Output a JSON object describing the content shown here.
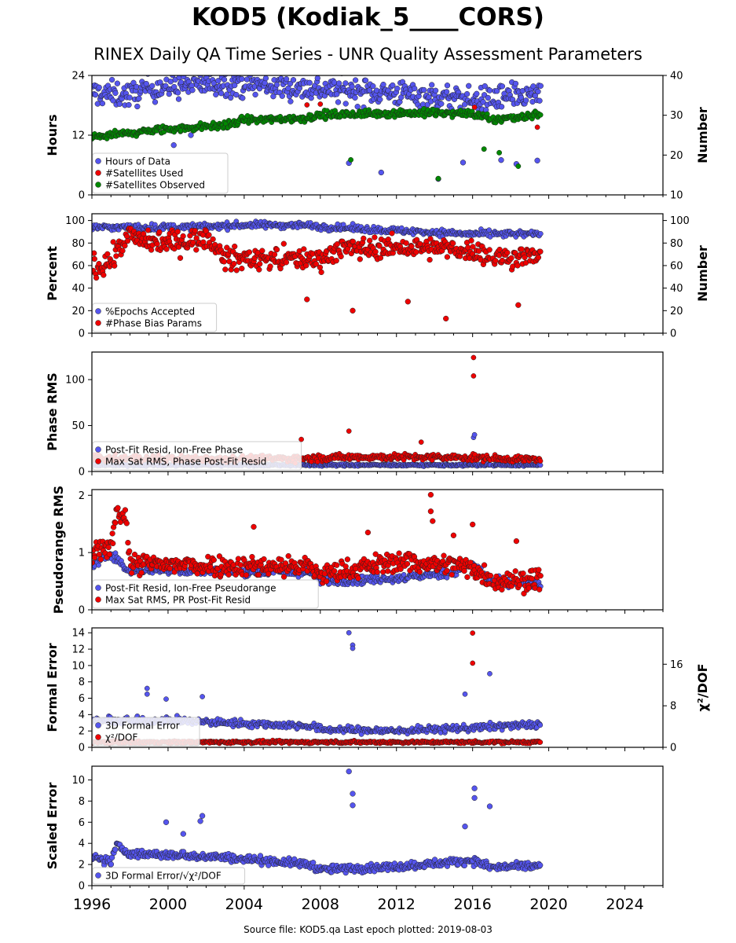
{
  "title": "KOD5 (Kodiak_5____CORS)",
  "subtitle": "RINEX Daily QA Time Series - UNR Quality Assessment Parameters",
  "footer": "Source file: KOD5.qa Last epoch plotted: 2019-08-03",
  "colors": {
    "blue": "#5555ee",
    "red": "#ee0000",
    "green": "#008800",
    "edge": "#222222"
  },
  "chart_data": {
    "type": "scatter",
    "x_axis": {
      "range": [
        1996,
        2026
      ],
      "ticks": [
        1996,
        2000,
        2004,
        2008,
        2012,
        2016,
        2020,
        2024
      ],
      "tick_labels": [
        "1996",
        "2000",
        "2004",
        "2008",
        "2012",
        "2016",
        "2020",
        "2024"
      ]
    },
    "data_span": {
      "start": 1996.0,
      "end": 2019.59
    },
    "panels": [
      {
        "ylabel": "Hours",
        "ylim": [
          0,
          24
        ],
        "yticks": [
          0,
          12,
          24
        ],
        "ytick_labels": [
          "0",
          "12",
          "24"
        ],
        "ylabel_right": "Number",
        "ylim_right": [
          10,
          40
        ],
        "yticks_right": [
          10,
          20,
          30,
          40
        ],
        "ytick_labels_right": [
          "10",
          "20",
          "30",
          "40"
        ],
        "legend": [
          "Hours of Data",
          "#Satellites Used",
          "#Satellites Observed"
        ],
        "series": [
          {
            "name": "Hours of Data",
            "color": "blue",
            "axis": "left",
            "marker_size": 3.4,
            "trend": [
              [
                1996,
                20.5
              ],
              [
                1998,
                20
              ],
              [
                1999,
                21.5
              ],
              [
                2003,
                22.5
              ],
              [
                2007,
                21.5
              ],
              [
                2012,
                20.5
              ],
              [
                2016,
                19
              ],
              [
                2019.6,
                20
              ]
            ],
            "spread": 3.5,
            "outliers": [
              [
                2009.5,
                6.4
              ],
              [
                2011.2,
                4.5
              ],
              [
                2014.2,
                3.2
              ],
              [
                2015.5,
                6.5
              ],
              [
                2017.5,
                7
              ],
              [
                2018.3,
                6.2
              ],
              [
                2019.4,
                6.9
              ],
              [
                2001.2,
                12
              ],
              [
                2000.3,
                10
              ]
            ]
          },
          {
            "name": "#Satellites Used",
            "color": "red",
            "axis": "right",
            "trend": [
              [
                2007.3,
                32.6
              ],
              [
                2008,
                32.8
              ],
              [
                2012.3,
                31.2
              ],
              [
                2016.1,
                32
              ],
              [
                2019.4,
                27
              ]
            ],
            "points_only": true
          },
          {
            "name": "#Satellites Observed",
            "color": "green",
            "axis": "right",
            "marker_size": 3.2,
            "trend": [
              [
                1996,
                24.5
              ],
              [
                1998,
                25.5
              ],
              [
                2000,
                26.5
              ],
              [
                2003,
                27.5
              ],
              [
                2004,
                28.8
              ],
              [
                2007,
                29.2
              ],
              [
                2008,
                30
              ],
              [
                2012,
                30.6
              ],
              [
                2016,
                30.4
              ],
              [
                2017,
                28.8
              ],
              [
                2019.6,
                30.3
              ]
            ],
            "spread": 1.3,
            "outliers": [
              [
                2009.6,
                18.8
              ],
              [
                2014.2,
                14.1
              ],
              [
                2016.6,
                21.5
              ],
              [
                2018.4,
                17.2
              ],
              [
                2017.4,
                20.6
              ]
            ]
          }
        ]
      },
      {
        "ylabel": "Percent",
        "ylim": [
          0,
          106
        ],
        "yticks": [
          0,
          20,
          40,
          60,
          80,
          100
        ],
        "ytick_labels": [
          "0",
          "20",
          "40",
          "60",
          "80",
          "100"
        ],
        "ylabel_right": "Number",
        "ylim_right": [
          0,
          106
        ],
        "yticks_right": [
          0,
          20,
          40,
          60,
          80,
          100
        ],
        "ytick_labels_right": [
          "0",
          "20",
          "40",
          "60",
          "80",
          "100"
        ],
        "legend": [
          "%Epochs Accepted",
          "#Phase Bias Params"
        ],
        "series": [
          {
            "name": "%Epochs Accepted",
            "color": "blue",
            "axis": "left",
            "trend": [
              [
                1996,
                94
              ],
              [
                2001,
                94
              ],
              [
                2004,
                96
              ],
              [
                2007,
                96
              ],
              [
                2008.5,
                94
              ],
              [
                2012,
                91
              ],
              [
                2016,
                88
              ],
              [
                2017,
                88
              ],
              [
                2019.6,
                88
              ]
            ],
            "spread": 4
          },
          {
            "name": "#Phase Bias Params",
            "color": "red",
            "axis": "right",
            "marker_size": 3.4,
            "trend": [
              [
                1996,
                58
              ],
              [
                1997,
                64
              ],
              [
                1998,
                88
              ],
              [
                1999,
                80
              ],
              [
                2001,
                82
              ],
              [
                2002,
                85
              ],
              [
                2003,
                66
              ],
              [
                2008,
                66
              ],
              [
                2009,
                75
              ],
              [
                2012,
                76
              ],
              [
                2016,
                74
              ],
              [
                2017,
                68
              ],
              [
                2019.6,
                68
              ]
            ],
            "spread": 13,
            "outliers": [
              [
                2014.6,
                13
              ],
              [
                2009.7,
                20
              ],
              [
                2012.6,
                28
              ],
              [
                2018.4,
                25
              ],
              [
                2007.3,
                30
              ]
            ]
          }
        ]
      },
      {
        "ylabel": "Phase RMS",
        "ylim": [
          0,
          130
        ],
        "yticks": [
          0,
          50,
          100
        ],
        "ytick_labels": [
          "0",
          "50",
          "100"
        ],
        "legend": [
          "Post-Fit Resid, Ion-Free Phase",
          "Max Sat RMS, Phase Post-Fit Resid"
        ],
        "series": [
          {
            "name": "Post-Fit Resid, Ion-Free Phase",
            "color": "blue",
            "axis": "left",
            "trend": [
              [
                1996,
                7
              ],
              [
                2019.6,
                7
              ]
            ],
            "spread": 1.5,
            "outliers": [
              [
                2016.05,
                37
              ],
              [
                2016.1,
                40
              ]
            ]
          },
          {
            "name": "Max Sat RMS, Phase Post-Fit Resid",
            "color": "red",
            "axis": "left",
            "trend": [
              [
                1996,
                14
              ],
              [
                2007,
                14
              ],
              [
                2010,
                16
              ],
              [
                2016,
                15
              ],
              [
                2019.6,
                13
              ]
            ],
            "spread": 5,
            "outliers": [
              [
                2016.05,
                124
              ],
              [
                2016.05,
                104
              ],
              [
                2009.5,
                44
              ],
              [
                2007,
                35
              ],
              [
                2013.3,
                32
              ]
            ]
          }
        ]
      },
      {
        "ylabel": "Pseudorange RMS",
        "ylim": [
          0,
          2.1
        ],
        "yticks": [
          0,
          1,
          2
        ],
        "ytick_labels": [
          "0",
          "1",
          "2"
        ],
        "legend": [
          "Post-Fit Resid, Ion-Free Pseudorange",
          "Max Sat RMS, PR Post-Fit Resid"
        ],
        "series": [
          {
            "name": "Post-Fit Resid, Ion-Free Pseudorange",
            "color": "blue",
            "axis": "left",
            "trend": [
              [
                1996,
                0.75
              ],
              [
                1997,
                1.0
              ],
              [
                1997.8,
                0.7
              ],
              [
                2007.5,
                0.65
              ],
              [
                2008,
                0.5
              ],
              [
                2012,
                0.55
              ],
              [
                2015,
                0.65
              ],
              [
                2016,
                0.8
              ],
              [
                2017,
                0.5
              ],
              [
                2019.6,
                0.45
              ]
            ],
            "spread": 0.1
          },
          {
            "name": "Max Sat RMS, PR Post-Fit Resid",
            "color": "red",
            "axis": "left",
            "marker_size": 3.4,
            "trend": [
              [
                1996,
                0.95
              ],
              [
                1997,
                1.1
              ],
              [
                1997.3,
                1.75
              ],
              [
                1997.8,
                1.6
              ],
              [
                1998,
                0.8
              ],
              [
                2007.5,
                0.75
              ],
              [
                2008,
                0.6
              ],
              [
                2012,
                0.85
              ],
              [
                2014,
                0.8
              ],
              [
                2016,
                0.75
              ],
              [
                2017,
                0.5
              ],
              [
                2018,
                0.5
              ],
              [
                2019.6,
                0.55
              ]
            ],
            "spread": 0.25,
            "outliers": [
              [
                2013.8,
                2.01
              ],
              [
                2013.8,
                1.72
              ],
              [
                2013.9,
                1.55
              ],
              [
                2016,
                1.49
              ],
              [
                2010.5,
                1.35
              ],
              [
                2015,
                1.3
              ],
              [
                2018.3,
                1.2
              ],
              [
                2004.5,
                1.45
              ]
            ]
          }
        ]
      },
      {
        "ylabel": "Formal Error",
        "ylim": [
          0,
          14.6
        ],
        "yticks": [
          0,
          2,
          4,
          6,
          8,
          10,
          12,
          14
        ],
        "ytick_labels": [
          "0",
          "2",
          "4",
          "6",
          "8",
          "10",
          "12",
          "14"
        ],
        "ylabel_right": "χ²/DOF",
        "ylim_right": [
          0,
          23
        ],
        "yticks_right": [
          0,
          8,
          16
        ],
        "ytick_labels_right": [
          "0",
          "8",
          "16"
        ],
        "legend": [
          "3D Formal Error",
          "χ²/DOF"
        ],
        "series": [
          {
            "name": "3D Formal Error",
            "color": "blue",
            "axis": "left",
            "trend": [
              [
                1996,
                3.2
              ],
              [
                2000,
                3.3
              ],
              [
                2002,
                3.1
              ],
              [
                2007.5,
                2.6
              ],
              [
                2008,
                2.2
              ],
              [
                2012,
                2.0
              ],
              [
                2016,
                2.4
              ],
              [
                2019.6,
                2.8
              ]
            ],
            "spread": 0.6,
            "outliers": [
              [
                2009.5,
                14
              ],
              [
                2009.7,
                12.5
              ],
              [
                2009.7,
                12.1
              ],
              [
                2016.9,
                9
              ],
              [
                1998.9,
                7.2
              ],
              [
                1998.9,
                6.5
              ],
              [
                2015.6,
                6.5
              ],
              [
                2001.8,
                6.2
              ],
              [
                1999.9,
                5.9
              ]
            ]
          },
          {
            "name": "χ²/DOF",
            "color": "red",
            "axis": "right",
            "trend": [
              [
                1996,
                1.0
              ],
              [
                2019.6,
                1.0
              ]
            ],
            "spread": 0.35,
            "outliers": [
              [
                2016.0,
                22
              ],
              [
                2016.0,
                16.2
              ]
            ]
          }
        ]
      },
      {
        "ylabel": "Scaled Error",
        "ylim": [
          0,
          11.3
        ],
        "yticks": [
          0,
          2,
          4,
          6,
          8,
          10
        ],
        "ytick_labels": [
          "0",
          "2",
          "4",
          "6",
          "8",
          "10"
        ],
        "legend": [
          "3D Formal Error/√χ²/DOF"
        ],
        "series": [
          {
            "name": "3D Formal Error/√χ²/DOF",
            "color": "blue",
            "axis": "left",
            "marker_size": 3.4,
            "trend": [
              [
                1996,
                2.6
              ],
              [
                1997,
                2.3
              ],
              [
                1997.3,
                3.8
              ],
              [
                1998,
                3.0
              ],
              [
                2002,
                2.8
              ],
              [
                2005,
                2.4
              ],
              [
                2007.5,
                2.0
              ],
              [
                2008,
                1.5
              ],
              [
                2012,
                1.8
              ],
              [
                2014,
                2.1
              ],
              [
                2016,
                2.4
              ],
              [
                2017,
                1.7
              ],
              [
                2019.6,
                1.9
              ]
            ],
            "spread": 0.5,
            "outliers": [
              [
                2009.5,
                10.8
              ],
              [
                2009.7,
                8.7
              ],
              [
                2009.7,
                7.6
              ],
              [
                2016.1,
                9.2
              ],
              [
                2016.1,
                8.3
              ],
              [
                2016.9,
                7.5
              ],
              [
                2001.8,
                6.6
              ],
              [
                2001.7,
                6.1
              ],
              [
                1999.9,
                6.0
              ],
              [
                2015.6,
                5.6
              ],
              [
                2000.8,
                4.9
              ]
            ]
          }
        ]
      }
    ]
  }
}
